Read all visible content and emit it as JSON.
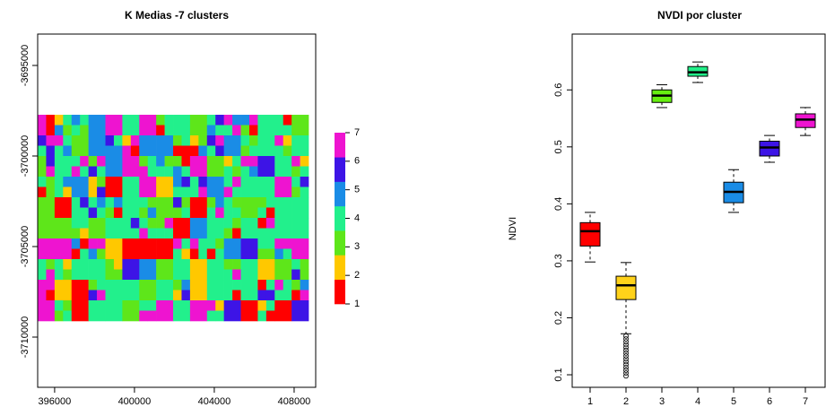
{
  "chart_data": [
    {
      "type": "raster",
      "title": "K Medias -7 clusters",
      "xlim": [
        395150,
        409080
      ],
      "ylim": [
        -3712772,
        -3693267
      ],
      "xticks": [
        396000,
        400000,
        404000,
        408000
      ],
      "yticks": [
        -3695000,
        -3700000,
        -3705000,
        -3710000
      ],
      "extent": [
        395150,
        408723,
        -3709109,
        -3697723
      ],
      "colorbar": {
        "lim": [
          1,
          7
        ],
        "ticks": [
          1,
          2,
          3,
          4,
          5,
          6,
          7
        ],
        "colors": [
          "#ff0000",
          "#ffc800",
          "#5ee61a",
          "#22f08c",
          "#1a8ce6",
          "#3d14e6",
          "#ee14d0"
        ]
      }
    },
    {
      "type": "boxplot",
      "title": "NVDI por cluster",
      "ylabel": "NDVI",
      "categories": [
        "1",
        "2",
        "3",
        "4",
        "5",
        "6",
        "7"
      ],
      "ylim": [
        0.078,
        0.698
      ],
      "yticks": [
        0.1,
        0.2,
        0.3,
        0.4,
        0.5,
        0.6
      ],
      "colors": [
        "#ff0000",
        "#ffd21a",
        "#66ee11",
        "#22ee88",
        "#1a8ce6",
        "#3d14e6",
        "#ee14d0"
      ],
      "boxes": [
        {
          "whislo": 0.298,
          "q1": 0.326,
          "med": 0.352,
          "q3": 0.367,
          "whishi": 0.385,
          "outliers": []
        },
        {
          "whislo": 0.172,
          "q1": 0.232,
          "med": 0.257,
          "q3": 0.273,
          "whishi": 0.297,
          "outliers": [
            0.168,
            0.163,
            0.158,
            0.153,
            0.148,
            0.143,
            0.138,
            0.133,
            0.128,
            0.123,
            0.118,
            0.113,
            0.108,
            0.103,
            0.098
          ]
        },
        {
          "whislo": 0.569,
          "q1": 0.578,
          "med": 0.59,
          "q3": 0.6,
          "whishi": 0.609,
          "outliers": []
        },
        {
          "whislo": 0.613,
          "q1": 0.624,
          "med": 0.631,
          "q3": 0.641,
          "whishi": 0.649,
          "outliers": []
        },
        {
          "whislo": 0.385,
          "q1": 0.402,
          "med": 0.421,
          "q3": 0.438,
          "whishi": 0.46,
          "outliers": []
        },
        {
          "whislo": 0.473,
          "q1": 0.484,
          "med": 0.499,
          "q3": 0.51,
          "whishi": 0.52,
          "outliers": []
        },
        {
          "whislo": 0.52,
          "q1": 0.534,
          "med": 0.548,
          "q3": 0.558,
          "whishi": 0.569,
          "outliers": []
        }
      ]
    }
  ]
}
